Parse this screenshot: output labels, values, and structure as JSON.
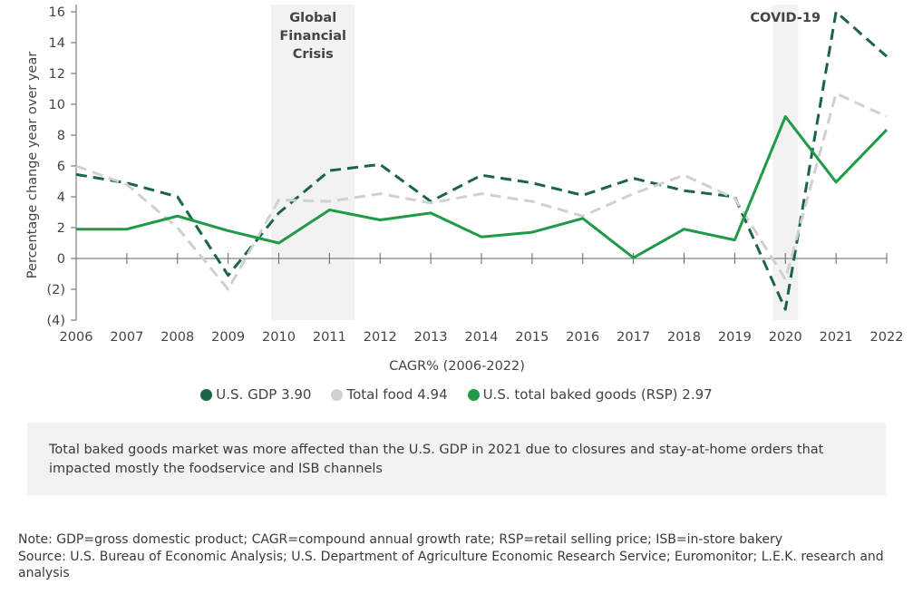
{
  "chart_data": {
    "type": "line",
    "ylabel": "Percentage change year over year",
    "xlabel": "CAGR% (2006-2022)",
    "x": [
      2006,
      2007,
      2008,
      2009,
      2010,
      2011,
      2012,
      2013,
      2014,
      2015,
      2016,
      2017,
      2018,
      2019,
      2020,
      2021,
      2022
    ],
    "x_tick_labels": [
      "2006",
      "2007",
      "2008",
      "2009",
      "2010",
      "2011",
      "2012",
      "2013",
      "2014",
      "2015",
      "2016",
      "2017",
      "2018",
      "2019",
      "2020",
      "2021",
      "2022"
    ],
    "ylim": [
      -4,
      16
    ],
    "y_ticks": [
      16,
      14,
      12,
      10,
      8,
      6,
      4,
      2,
      0,
      -2,
      -4
    ],
    "y_tick_labels": [
      "16",
      "14",
      "12",
      "10",
      "8",
      "6",
      "4",
      "2",
      "0",
      "(2)",
      "(4)"
    ],
    "grid": false,
    "legend_position": "bottom",
    "series": [
      {
        "name": "U.S. GDP 3.90",
        "color": "#1a6642",
        "style": "dashed",
        "values": [
          5.45,
          4.9,
          4.0,
          -1.1,
          2.95,
          5.7,
          6.1,
          3.7,
          5.4,
          4.9,
          4.1,
          5.2,
          4.4,
          4.0,
          -3.3,
          16.0,
          13.1
        ]
      },
      {
        "name": "Total food 4.94",
        "color": "#cfd1d0",
        "style": "dashed",
        "values": [
          6.0,
          4.8,
          2.0,
          -2.0,
          3.8,
          3.7,
          4.2,
          3.6,
          4.2,
          3.7,
          2.75,
          4.2,
          5.4,
          3.9,
          -1.35,
          10.7,
          9.2
        ]
      },
      {
        "name": "U.S. total baked goods (RSP) 2.97",
        "color": "#1e9a48",
        "style": "solid",
        "values": [
          1.9,
          1.9,
          2.75,
          1.8,
          1.0,
          3.15,
          2.5,
          2.95,
          1.4,
          1.7,
          2.6,
          0.05,
          1.9,
          1.2,
          9.2,
          4.95,
          8.35
        ]
      }
    ],
    "annotations": [
      {
        "label": "Global Financial Crisis",
        "lines": [
          "Global",
          "Financial",
          "Crisis"
        ],
        "x_range": [
          2009.85,
          2011.5
        ]
      },
      {
        "label": "COVID-19",
        "lines": [
          "COVID-19"
        ],
        "x_range": [
          2019.75,
          2020.25
        ]
      }
    ]
  },
  "callout": {
    "text": "Total baked goods market was more affected than the U.S. GDP in 2021 due to closures and stay-at-home orders that impacted mostly the foodservice and ISB channels"
  },
  "notes": {
    "note": "Note: GDP=gross domestic product; CAGR=compound annual growth rate; RSP=retail selling price; ISB=in-store bakery",
    "source": "Source: U.S. Bureau of Economic Analysis; U.S. Department of Agriculture Economic Research Service; Euromonitor; L.E.K. research and analysis"
  }
}
